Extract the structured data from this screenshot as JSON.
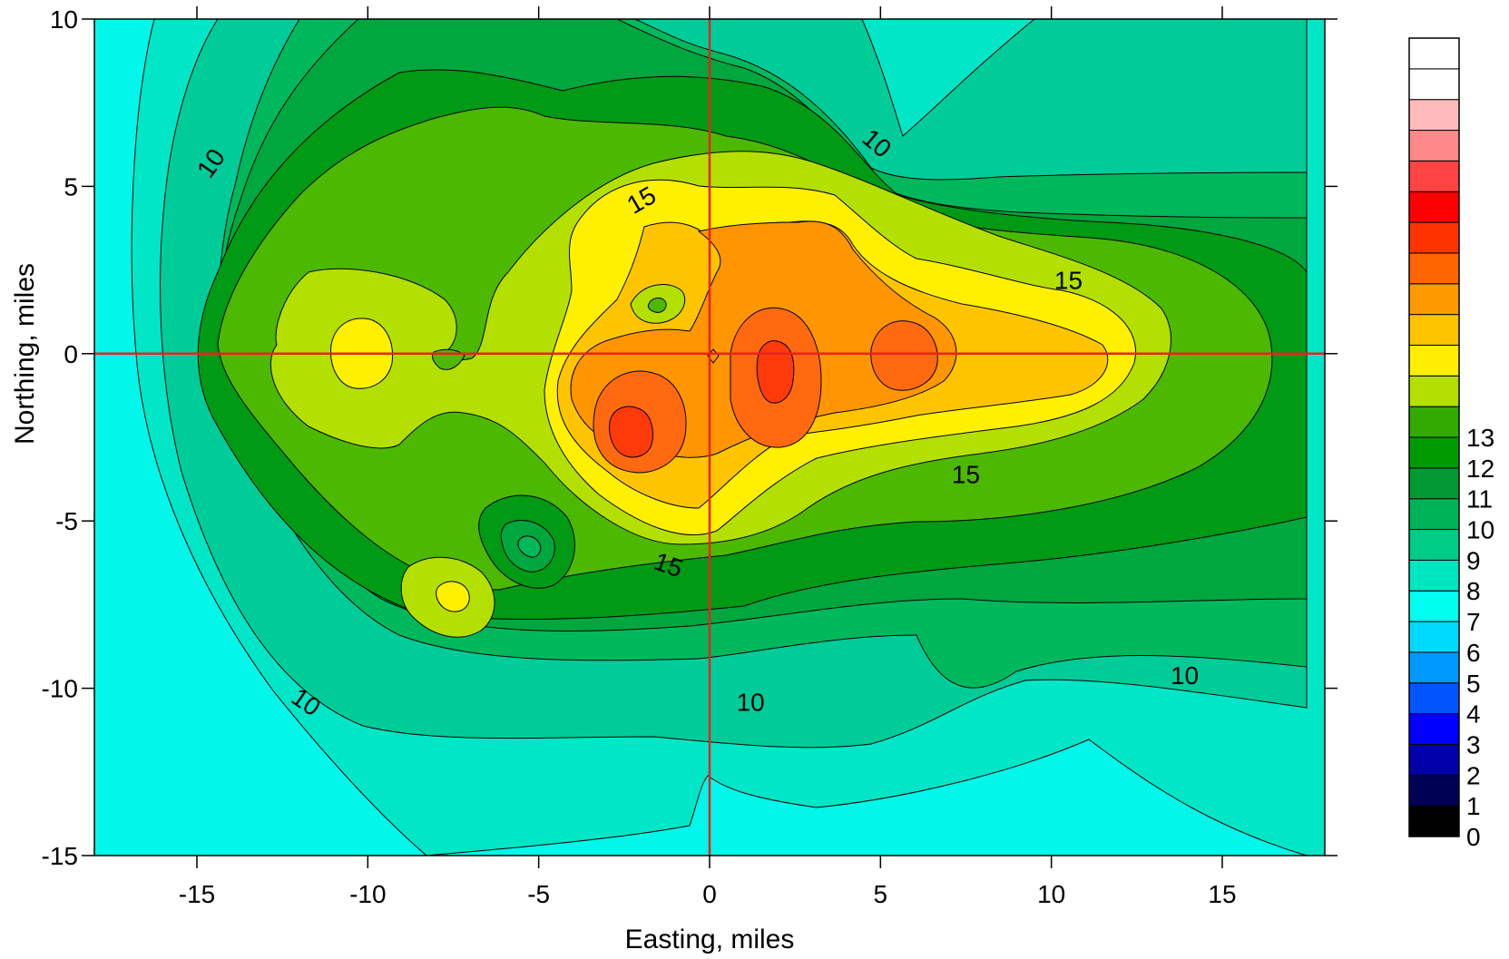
{
  "chart_data": {
    "type": "contour",
    "xlabel": "Easting, miles",
    "ylabel": "Northing, miles",
    "xlim": [
      -18,
      18
    ],
    "ylim": [
      -15,
      10
    ],
    "xticks": [
      -15,
      -10,
      -5,
      0,
      5,
      10,
      15
    ],
    "yticks": [
      -15,
      -10,
      -5,
      0,
      5,
      10
    ],
    "xtick_labels": [
      "-15",
      "-10",
      "-5",
      "0",
      "5",
      "10",
      "15"
    ],
    "ytick_labels": [
      "-15",
      "-10",
      "-5",
      "0",
      "5",
      "10"
    ],
    "reference_lines": {
      "x": 0,
      "y": 0,
      "color": "#e8231d"
    },
    "contour_labels": [
      {
        "text": "10",
        "x": -14.6,
        "y": 5.7,
        "angle": -55
      },
      {
        "text": "10",
        "x": 4.9,
        "y": 6.3,
        "angle": 40
      },
      {
        "text": "15",
        "x": -2.0,
        "y": 4.6,
        "angle": -30
      },
      {
        "text": "15",
        "x": 10.5,
        "y": 2.2,
        "angle": 0
      },
      {
        "text": "15",
        "x": 7.5,
        "y": -3.6,
        "angle": 0
      },
      {
        "text": "15",
        "x": -1.2,
        "y": -6.3,
        "angle": 20
      },
      {
        "text": "10",
        "x": -11.8,
        "y": -10.4,
        "angle": 35
      },
      {
        "text": "10",
        "x": 1.2,
        "y": -10.4,
        "angle": 0
      },
      {
        "text": "10",
        "x": 13.9,
        "y": -9.6,
        "angle": 0
      }
    ],
    "colorbar": {
      "labels": [
        "0",
        "1",
        "2",
        "3",
        "4",
        "5",
        "6",
        "7",
        "8",
        "9",
        "10",
        "11",
        "12",
        "13"
      ],
      "colors": [
        "#000000",
        "#000055",
        "#0000aa",
        "#0000ff",
        "#0055ff",
        "#0099ff",
        "#00d9ff",
        "#00ffee",
        "#00e6c0",
        "#00cc88",
        "#00b359",
        "#009933",
        "#009900",
        "#33aa00",
        "#b3e000",
        "#ffee00",
        "#ffc400",
        "#ff9900",
        "#ff6600",
        "#ff3300",
        "#ff0000",
        "#ff4444",
        "#ff8888",
        "#ffbbbb",
        "#ffffff",
        "#ffffff"
      ]
    },
    "level_fills": {
      "7": "#00e6ff",
      "8": "#00f7ea",
      "9": "#00e6c6",
      "10": "#00cc99",
      "11": "#00b85c",
      "12": "#00a63e",
      "13": "#009a14",
      "14": "#4db800",
      "15": "#b3e000",
      "16": "#fff000",
      "17": "#ffc400",
      "18": "#ff9500",
      "19": "#ff6a10",
      "20": "#ff3a0a"
    }
  }
}
